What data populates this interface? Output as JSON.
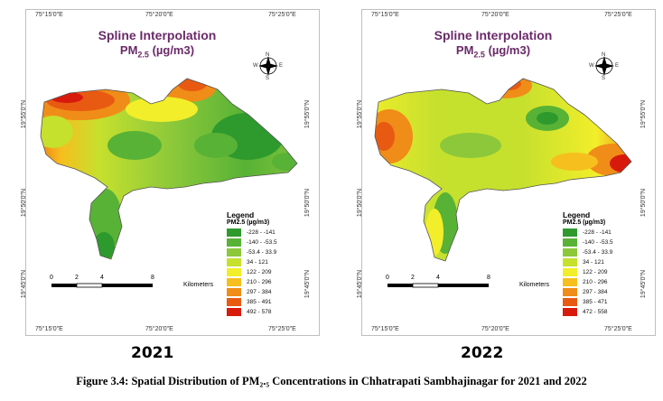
{
  "map_title_line1": "Spline Interpolation",
  "map_title_line2_main": "PM",
  "map_title_line2_sub": "2.5",
  "map_title_line2_unit": "(µg/m3)",
  "coords": {
    "top_left": "75°15'0\"E",
    "top_mid": "75°20'0\"E",
    "top_right": "75°25'0\"E",
    "bottom_left": "75°15'0\"E",
    "bottom_mid": "75°20'0\"E",
    "bottom_right": "75°25'0\"E",
    "lat_top": "19°55'0\"N",
    "lat_mid": "19°50'0\"N",
    "lat_bot": "19°45'0\"N"
  },
  "compass_labels": {
    "n": "N",
    "s": "S",
    "e": "E",
    "w": "W"
  },
  "legend_heading": "Legend",
  "legend_unit": "PM2.5 (µg/m3)",
  "legend_2021": [
    "-228 - -141",
    "-140 - -53.5",
    "-53.4 - 33.9",
    "34 - 121",
    "122 - 209",
    "210 - 296",
    "297 - 384",
    "385 - 491",
    "492 - 578"
  ],
  "legend_2022": [
    "-228 - -141",
    "-140 - -53.5",
    "-53.4 - 33.9",
    "34 - 121",
    "122 - 209",
    "210 - 296",
    "297 - 384",
    "385 - 471",
    "472 - 558"
  ],
  "legend_colors": [
    "#2e9a2e",
    "#58b236",
    "#8cc83a",
    "#c6e02e",
    "#f2ee2a",
    "#f6bf1e",
    "#f08c18",
    "#e85a12",
    "#d81a0c"
  ],
  "scale_ticks": [
    "0",
    "2",
    "4",
    "8"
  ],
  "scale_unit": "Kilometers",
  "year_2021": "2021",
  "year_2022": "2022",
  "caption_prefix": "Figure 3.4",
  "caption_text": ": Spatial Distribution of PM₂.₅ Concentrations in Chhatrapati Sambhajinagar for 2021 and 2022"
}
